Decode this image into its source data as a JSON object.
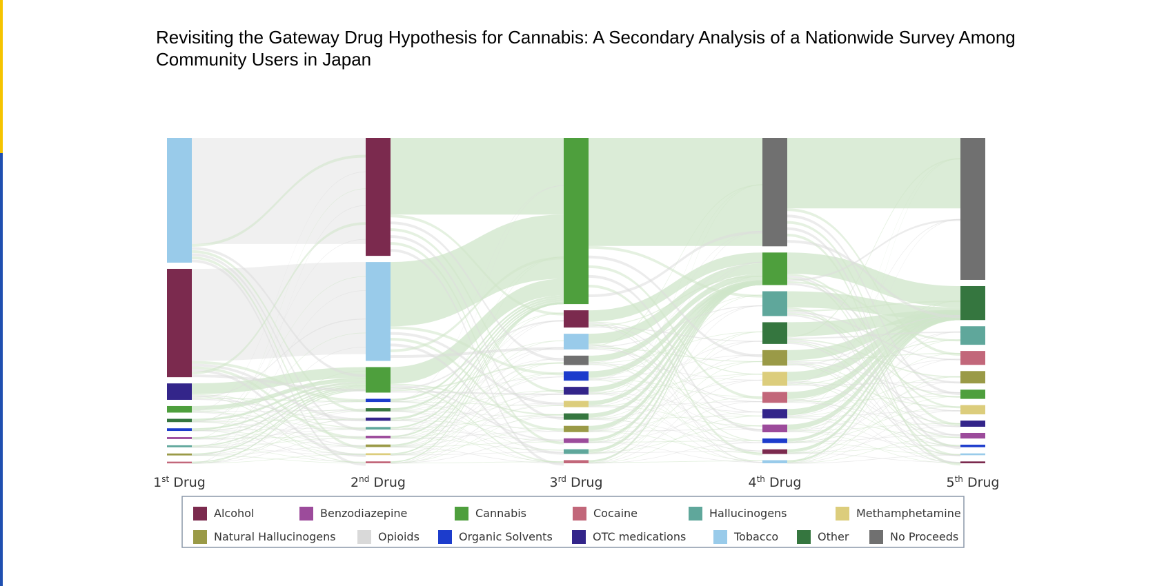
{
  "title": "Revisiting the Gateway Drug Hypothesis for Cannabis: A Secondary Analysis of a Nationwide Survey Among Community Users in Japan",
  "stages": [
    {
      "base": "1",
      "sup": "st",
      "rest": " Drug"
    },
    {
      "base": "2",
      "sup": "nd",
      "rest": " Drug"
    },
    {
      "base": "3",
      "sup": "rd",
      "rest": " Drug"
    },
    {
      "base": "4",
      "sup": "th",
      "rest": " Drug"
    },
    {
      "base": "5",
      "sup": "th",
      "rest": " Drug"
    }
  ],
  "legend": [
    {
      "key": "alcohol",
      "label": "Alcohol",
      "color": "#7b2a4e"
    },
    {
      "key": "benzo",
      "label": "Benzodiazepine",
      "color": "#9c4b9b"
    },
    {
      "key": "cannabis",
      "label": "Cannabis",
      "color": "#4e9f3d"
    },
    {
      "key": "cocaine",
      "label": "Cocaine",
      "color": "#c2677a"
    },
    {
      "key": "halluc",
      "label": "Hallucinogens",
      "color": "#5fa79b"
    },
    {
      "key": "meth",
      "label": "Methamphetamine",
      "color": "#dccd7c"
    },
    {
      "key": "naturalh",
      "label": "Natural Hallucinogens",
      "color": "#9a9a47"
    },
    {
      "key": "opioids",
      "label": "Opioids",
      "color": "#d9d9d9"
    },
    {
      "key": "solvents",
      "label": "Organic Solvents",
      "color": "#1c3ccc"
    },
    {
      "key": "otc",
      "label": "OTC medications",
      "color": "#33258a"
    },
    {
      "key": "tobacco",
      "label": "Tobacco",
      "color": "#99cbea"
    },
    {
      "key": "other",
      "label": "Other",
      "color": "#35763f"
    },
    {
      "key": "noproceeds",
      "label": "No Proceeds",
      "color": "#707070"
    }
  ],
  "chart_data": {
    "type": "sankey",
    "stages": [
      "1st Drug",
      "2nd Drug",
      "3rd Drug",
      "4th Drug",
      "5th Drug"
    ],
    "nodes": [
      [
        {
          "key": "tobacco",
          "value": 38
        },
        {
          "key": "alcohol",
          "value": 33
        },
        {
          "key": "otc",
          "value": 5
        },
        {
          "key": "cannabis",
          "value": 2
        },
        {
          "key": "other",
          "value": 1
        },
        {
          "key": "solvents",
          "value": 0.8
        },
        {
          "key": "benzo",
          "value": 0.6
        },
        {
          "key": "halluc",
          "value": 0.6
        },
        {
          "key": "naturalh",
          "value": 0.6
        },
        {
          "key": "cocaine",
          "value": 0.5
        }
      ],
      [
        {
          "key": "alcohol",
          "value": 37
        },
        {
          "key": "tobacco",
          "value": 31
        },
        {
          "key": "cannabis",
          "value": 8
        },
        {
          "key": "solvents",
          "value": 1
        },
        {
          "key": "other",
          "value": 1
        },
        {
          "key": "otc",
          "value": 1
        },
        {
          "key": "halluc",
          "value": 0.8
        },
        {
          "key": "benzo",
          "value": 0.8
        },
        {
          "key": "naturalh",
          "value": 0.8
        },
        {
          "key": "meth",
          "value": 0.6
        },
        {
          "key": "cocaine",
          "value": 0.6
        }
      ],
      [
        {
          "key": "cannabis",
          "value": 53
        },
        {
          "key": "alcohol",
          "value": 5.5
        },
        {
          "key": "tobacco",
          "value": 5
        },
        {
          "key": "noproceeds",
          "value": 3
        },
        {
          "key": "solvents",
          "value": 3
        },
        {
          "key": "otc",
          "value": 2.5
        },
        {
          "key": "meth",
          "value": 2
        },
        {
          "key": "other",
          "value": 2
        },
        {
          "key": "naturalh",
          "value": 2
        },
        {
          "key": "benzo",
          "value": 1.5
        },
        {
          "key": "halluc",
          "value": 1.5
        },
        {
          "key": "cocaine",
          "value": 1
        }
      ],
      [
        {
          "key": "noproceeds",
          "value": 35
        },
        {
          "key": "cannabis",
          "value": 10.5
        },
        {
          "key": "halluc",
          "value": 8
        },
        {
          "key": "other",
          "value": 7
        },
        {
          "key": "naturalh",
          "value": 5
        },
        {
          "key": "meth",
          "value": 4.5
        },
        {
          "key": "cocaine",
          "value": 3.5
        },
        {
          "key": "otc",
          "value": 3
        },
        {
          "key": "benzo",
          "value": 2.5
        },
        {
          "key": "solvents",
          "value": 1.5
        },
        {
          "key": "alcohol",
          "value": 1.5
        },
        {
          "key": "tobacco",
          "value": 1
        }
      ],
      [
        {
          "key": "noproceeds",
          "value": 46
        },
        {
          "key": "other",
          "value": 11
        },
        {
          "key": "halluc",
          "value": 6
        },
        {
          "key": "cocaine",
          "value": 4.5
        },
        {
          "key": "naturalh",
          "value": 4
        },
        {
          "key": "cannabis",
          "value": 3
        },
        {
          "key": "meth",
          "value": 3
        },
        {
          "key": "otc",
          "value": 2
        },
        {
          "key": "benzo",
          "value": 1.8
        },
        {
          "key": "solvents",
          "value": 0.8
        },
        {
          "key": "halluc2",
          "value": 0.6
        },
        {
          "key": "alcohol",
          "value": 0.6
        }
      ]
    ]
  }
}
